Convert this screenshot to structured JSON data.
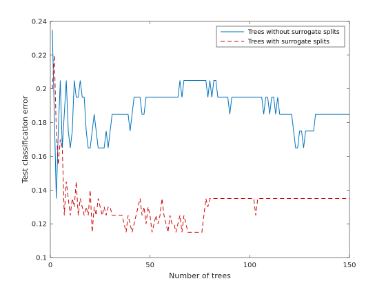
{
  "chart_data": {
    "type": "line",
    "title": "",
    "xlabel": "Number of trees",
    "ylabel": "Test classification error",
    "xlim": [
      0,
      150
    ],
    "ylim": [
      0.1,
      0.24
    ],
    "xticks": [
      "0",
      "50",
      "100",
      "150"
    ],
    "yticks": [
      "0.1",
      "0.12",
      "0.14",
      "0.16",
      "0.18",
      "0.2",
      "0.22",
      "0.24"
    ],
    "xtick_values": [
      0,
      50,
      100,
      150
    ],
    "ytick_values": [
      0.1,
      0.12,
      0.14,
      0.16,
      0.18,
      0.2,
      0.22,
      0.24
    ],
    "grid": false,
    "legend_position": "top-right",
    "series": [
      {
        "name": "Trees without surrogate splits",
        "color": "#0072BD",
        "line_style": "solid",
        "x": [
          1,
          2,
          3,
          4,
          5,
          6,
          7,
          8,
          9,
          10,
          11,
          12,
          13,
          14,
          15,
          16,
          17,
          18,
          19,
          20,
          21,
          22,
          23,
          24,
          25,
          26,
          27,
          28,
          29,
          30,
          31,
          32,
          33,
          34,
          35,
          36,
          37,
          38,
          39,
          40,
          41,
          42,
          43,
          44,
          45,
          46,
          47,
          48,
          49,
          50,
          51,
          52,
          53,
          54,
          55,
          56,
          57,
          58,
          59,
          60,
          61,
          62,
          63,
          64,
          65,
          66,
          67,
          68,
          69,
          70,
          71,
          72,
          73,
          74,
          75,
          76,
          77,
          78,
          79,
          80,
          81,
          82,
          83,
          84,
          85,
          86,
          87,
          88,
          89,
          90,
          91,
          92,
          93,
          94,
          95,
          96,
          97,
          98,
          99,
          100,
          101,
          102,
          103,
          104,
          105,
          106,
          107,
          108,
          109,
          110,
          111,
          112,
          113,
          114,
          115,
          116,
          117,
          118,
          119,
          120,
          121,
          122,
          123,
          124,
          125,
          126,
          127,
          128,
          129,
          130,
          131,
          132,
          133,
          134,
          135,
          136,
          137,
          138,
          139,
          140,
          141,
          142,
          143,
          144,
          145,
          146,
          147,
          148,
          149,
          150
        ],
        "y": [
          0.235,
          0.185,
          0.135,
          0.175,
          0.205,
          0.165,
          0.185,
          0.205,
          0.175,
          0.165,
          0.175,
          0.205,
          0.195,
          0.195,
          0.205,
          0.195,
          0.195,
          0.175,
          0.165,
          0.165,
          0.175,
          0.185,
          0.175,
          0.165,
          0.165,
          0.165,
          0.165,
          0.175,
          0.165,
          0.175,
          0.185,
          0.185,
          0.185,
          0.185,
          0.185,
          0.185,
          0.185,
          0.185,
          0.185,
          0.175,
          0.185,
          0.195,
          0.195,
          0.195,
          0.195,
          0.185,
          0.185,
          0.195,
          0.195,
          0.195,
          0.195,
          0.195,
          0.195,
          0.195,
          0.195,
          0.195,
          0.195,
          0.195,
          0.195,
          0.195,
          0.195,
          0.195,
          0.195,
          0.195,
          0.205,
          0.195,
          0.205,
          0.205,
          0.205,
          0.205,
          0.205,
          0.205,
          0.205,
          0.205,
          0.205,
          0.205,
          0.205,
          0.205,
          0.195,
          0.205,
          0.195,
          0.205,
          0.205,
          0.195,
          0.195,
          0.195,
          0.195,
          0.195,
          0.195,
          0.185,
          0.195,
          0.195,
          0.195,
          0.195,
          0.195,
          0.195,
          0.195,
          0.195,
          0.195,
          0.195,
          0.195,
          0.195,
          0.195,
          0.195,
          0.195,
          0.195,
          0.185,
          0.195,
          0.195,
          0.185,
          0.195,
          0.195,
          0.185,
          0.195,
          0.185,
          0.185,
          0.185,
          0.185,
          0.185,
          0.185,
          0.185,
          0.175,
          0.165,
          0.165,
          0.175,
          0.175,
          0.165,
          0.175,
          0.175,
          0.175,
          0.175,
          0.175,
          0.185,
          0.185,
          0.185,
          0.185,
          0.185,
          0.185,
          0.185,
          0.185,
          0.185,
          0.185,
          0.185,
          0.185,
          0.185,
          0.185,
          0.185,
          0.185,
          0.185,
          0.185
        ]
      },
      {
        "name": "Trees with surrogate splits",
        "color": "#D00000",
        "line_style": "dashed",
        "x": [
          1,
          2,
          3,
          4,
          5,
          6,
          7,
          8,
          9,
          10,
          11,
          12,
          13,
          14,
          15,
          16,
          17,
          18,
          19,
          20,
          21,
          22,
          23,
          24,
          25,
          26,
          27,
          28,
          29,
          30,
          31,
          32,
          33,
          34,
          35,
          36,
          37,
          38,
          39,
          40,
          41,
          42,
          43,
          44,
          45,
          46,
          47,
          48,
          49,
          50,
          51,
          52,
          53,
          54,
          55,
          56,
          57,
          58,
          59,
          60,
          61,
          62,
          63,
          64,
          65,
          66,
          67,
          68,
          69,
          70,
          71,
          72,
          73,
          74,
          75,
          76,
          77,
          78,
          79,
          80,
          81,
          82,
          83,
          84,
          85,
          86,
          87,
          88,
          89,
          90,
          91,
          92,
          93,
          94,
          95,
          96,
          97,
          98,
          99,
          100,
          101,
          102,
          103,
          104,
          105,
          106,
          107,
          108,
          109,
          110,
          111,
          112,
          113,
          114,
          115,
          116,
          117,
          118,
          119,
          120,
          121,
          122,
          123,
          124,
          125,
          126,
          127,
          128,
          129,
          130,
          131,
          132,
          133,
          134,
          135,
          136,
          137,
          138,
          139,
          140,
          141,
          142,
          143,
          144,
          145,
          146,
          147,
          148,
          149,
          150
        ],
        "y": [
          0.2,
          0.22,
          0.175,
          0.155,
          0.17,
          0.165,
          0.125,
          0.145,
          0.135,
          0.125,
          0.135,
          0.13,
          0.145,
          0.125,
          0.135,
          0.13,
          0.125,
          0.13,
          0.125,
          0.14,
          0.115,
          0.13,
          0.125,
          0.135,
          0.13,
          0.125,
          0.13,
          0.125,
          0.13,
          0.13,
          0.125,
          0.125,
          0.125,
          0.125,
          0.125,
          0.125,
          0.12,
          0.115,
          0.125,
          0.12,
          0.115,
          0.12,
          0.125,
          0.13,
          0.135,
          0.125,
          0.13,
          0.12,
          0.13,
          0.125,
          0.115,
          0.12,
          0.125,
          0.12,
          0.125,
          0.135,
          0.125,
          0.12,
          0.115,
          0.125,
          0.12,
          0.12,
          0.115,
          0.12,
          0.125,
          0.115,
          0.125,
          0.12,
          0.115,
          0.115,
          0.115,
          0.115,
          0.115,
          0.115,
          0.115,
          0.115,
          0.125,
          0.135,
          0.13,
          0.135,
          0.135,
          0.135,
          0.135,
          0.135,
          0.135,
          0.135,
          0.135,
          0.135,
          0.135,
          0.135,
          0.135,
          0.135,
          0.135,
          0.135,
          0.135,
          0.135,
          0.135,
          0.135,
          0.135,
          0.135,
          0.135,
          0.135,
          0.125,
          0.135,
          0.135,
          0.135,
          0.135,
          0.135,
          0.135,
          0.135,
          0.135,
          0.135,
          0.135,
          0.135,
          0.135,
          0.135,
          0.135,
          0.135,
          0.135,
          0.135,
          0.135,
          0.135,
          0.135,
          0.135,
          0.135,
          0.135,
          0.135,
          0.135,
          0.135,
          0.135,
          0.135,
          0.135,
          0.135,
          0.135,
          0.135,
          0.135,
          0.135,
          0.135,
          0.135,
          0.135,
          0.135,
          0.135,
          0.135,
          0.135,
          0.135,
          0.135,
          0.135,
          0.135,
          0.135,
          0.135
        ]
      }
    ]
  }
}
